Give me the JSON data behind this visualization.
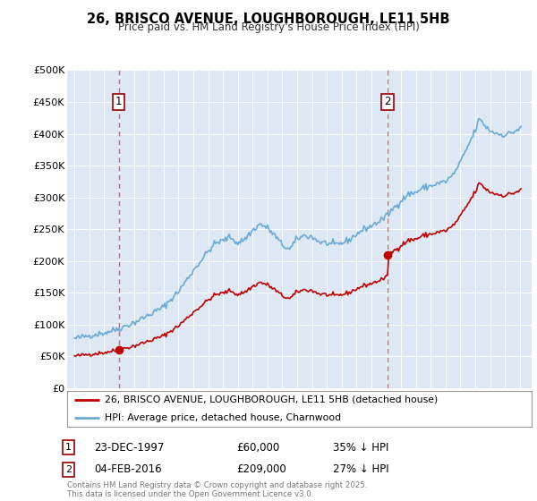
{
  "title": "26, BRISCO AVENUE, LOUGHBOROUGH, LE11 5HB",
  "subtitle": "Price paid vs. HM Land Registry's House Price Index (HPI)",
  "ylim": [
    0,
    500000
  ],
  "yticks": [
    0,
    50000,
    100000,
    150000,
    200000,
    250000,
    300000,
    350000,
    400000,
    450000,
    500000
  ],
  "legend_label_red": "26, BRISCO AVENUE, LOUGHBOROUGH, LE11 5HB (detached house)",
  "legend_label_blue": "HPI: Average price, detached house, Charnwood",
  "footer": "Contains HM Land Registry data © Crown copyright and database right 2025.\nThis data is licensed under the Open Government Licence v3.0.",
  "marker1_date": "23-DEC-1997",
  "marker1_price": "£60,000",
  "marker1_hpi": "35% ↓ HPI",
  "marker2_date": "04-FEB-2016",
  "marker2_price": "£209,000",
  "marker2_hpi": "27% ↓ HPI",
  "hpi_color": "#6aaad4",
  "price_color": "#c00000",
  "vline_color": "#e06060",
  "sale1_x": 1997.97,
  "sale1_y": 60000,
  "sale2_x": 2016.09,
  "sale2_y": 209000,
  "vline1_x": 1997.97,
  "vline2_x": 2016.09,
  "xlim_left": 1994.5,
  "xlim_right": 2025.8,
  "xticks": [
    1995,
    1996,
    1997,
    1998,
    1999,
    2000,
    2001,
    2002,
    2003,
    2004,
    2005,
    2006,
    2007,
    2008,
    2009,
    2010,
    2011,
    2012,
    2013,
    2014,
    2015,
    2016,
    2017,
    2018,
    2019,
    2020,
    2021,
    2022,
    2023,
    2024,
    2025
  ]
}
